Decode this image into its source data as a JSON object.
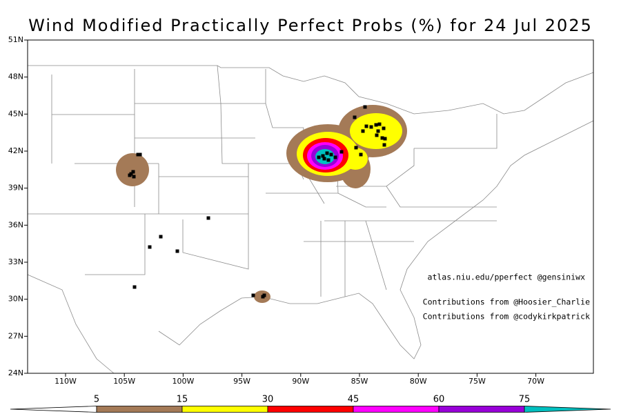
{
  "title": "Wind Modified Practically Perfect Probs (%) for 24 Jul 2025",
  "lat_labels": [
    "51N",
    "48N",
    "45N",
    "42N",
    "39N",
    "36N",
    "33N",
    "30N",
    "27N",
    "24N"
  ],
  "lon_labels": [
    "110W",
    "105W",
    "100W",
    "95W",
    "90W",
    "85W",
    "80W",
    "75W",
    "70W"
  ],
  "credits": [
    "atlas.niu.edu/pperfect @gensiniwx",
    "Contributions from @Hoosier_Charlie",
    "Contributions from @codykirkpatrick"
  ],
  "colorbar": {
    "labels": [
      "5",
      "15",
      "30",
      "45",
      "60",
      "75"
    ],
    "colors": [
      "#ffffff",
      "#a47a57",
      "#ffff00",
      "#ff0000",
      "#ff00ff",
      "#9800d8",
      "#00c0c0"
    ]
  }
}
